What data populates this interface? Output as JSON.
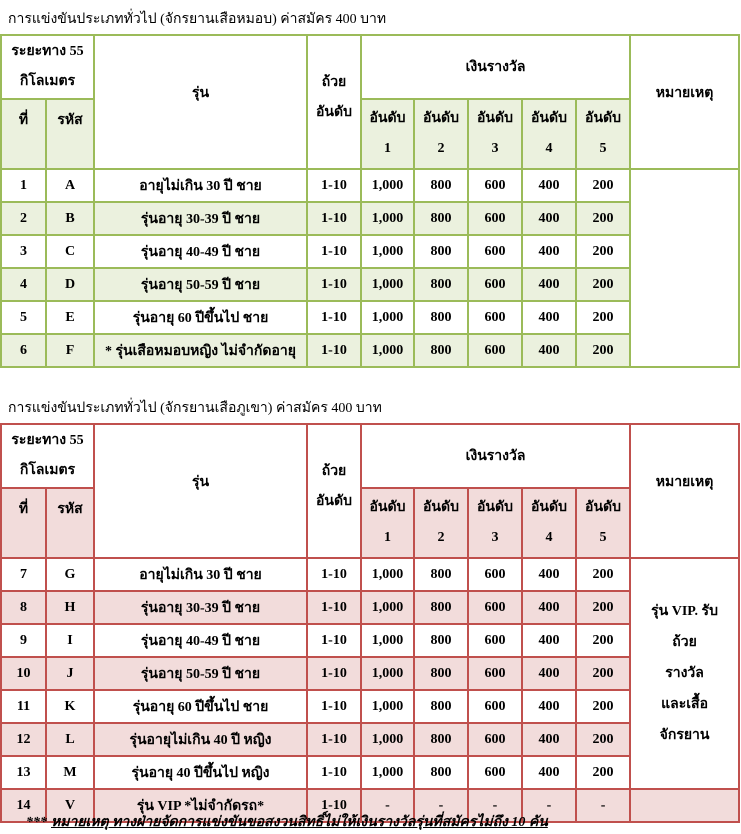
{
  "colors": {
    "green_border": "#9bbb59",
    "green_fill": "#ebf1de",
    "red_border": "#c0504d",
    "red_fill": "#f2dcdb"
  },
  "headers": {
    "distance_line1": "ระยะทาง 55",
    "distance_line2": "กิโลเมตร",
    "class": "รุ่น",
    "trophy_line1": "ถ้วย",
    "trophy_line2": "อันดับ",
    "prize": "เงินรางวัล",
    "remark": "หมายเหตุ",
    "no": "ที่",
    "code": "รหัส",
    "rank_label": "อันดับ",
    "ranks": [
      "1",
      "2",
      "3",
      "4",
      "5"
    ]
  },
  "table1": {
    "title": "การแข่งขันประเภททั่วไป (จักรยานเสือหมอบ) ค่าสมัคร 400 บาท",
    "rows": [
      {
        "no": "1",
        "code": "A",
        "class": "อายุไม่เกิน 30 ปี ชาย",
        "trophy": "1-10",
        "prizes": [
          "1,000",
          "800",
          "600",
          "400",
          "200"
        ]
      },
      {
        "no": "2",
        "code": "B",
        "class": "รุ่นอายุ 30-39 ปี ชาย",
        "trophy": "1-10",
        "prizes": [
          "1,000",
          "800",
          "600",
          "400",
          "200"
        ]
      },
      {
        "no": "3",
        "code": "C",
        "class": "รุ่นอายุ 40-49 ปี ชาย",
        "trophy": "1-10",
        "prizes": [
          "1,000",
          "800",
          "600",
          "400",
          "200"
        ]
      },
      {
        "no": "4",
        "code": "D",
        "class": "รุ่นอายุ 50-59 ปี ชาย",
        "trophy": "1-10",
        "prizes": [
          "1,000",
          "800",
          "600",
          "400",
          "200"
        ]
      },
      {
        "no": "5",
        "code": "E",
        "class": "รุ่นอายุ 60 ปีขึ้นไป ชาย",
        "trophy": "1-10",
        "prizes": [
          "1,000",
          "800",
          "600",
          "400",
          "200"
        ]
      },
      {
        "no": "6",
        "code": "F",
        "class": "* รุ่นเสือหมอบหญิง ไม่จำกัดอายุ",
        "trophy": "1-10",
        "prizes": [
          "1,000",
          "800",
          "600",
          "400",
          "200"
        ]
      }
    ]
  },
  "table2": {
    "title": "การแข่งขันประเภททั่วไป (จักรยานเสือภูเขา) ค่าสมัคร 400 บาท",
    "remark_lines": [
      "รุ่น VIP. รับ",
      "ถ้วย",
      "รางวัล",
      "และเสื้อ",
      "จักรยาน"
    ],
    "rows": [
      {
        "no": "7",
        "code": "G",
        "class": "อายุไม่เกิน 30 ปี ชาย",
        "trophy": "1-10",
        "prizes": [
          "1,000",
          "800",
          "600",
          "400",
          "200"
        ]
      },
      {
        "no": "8",
        "code": "H",
        "class": "รุ่นอายุ 30-39 ปี ชาย",
        "trophy": "1-10",
        "prizes": [
          "1,000",
          "800",
          "600",
          "400",
          "200"
        ]
      },
      {
        "no": "9",
        "code": "I",
        "class": "รุ่นอายุ 40-49 ปี ชาย",
        "trophy": "1-10",
        "prizes": [
          "1,000",
          "800",
          "600",
          "400",
          "200"
        ]
      },
      {
        "no": "10",
        "code": "J",
        "class": "รุ่นอายุ 50-59 ปี ชาย",
        "trophy": "1-10",
        "prizes": [
          "1,000",
          "800",
          "600",
          "400",
          "200"
        ]
      },
      {
        "no": "11",
        "code": "K",
        "class": "รุ่นอายุ 60 ปีขึ้นไป ชาย",
        "trophy": "1-10",
        "prizes": [
          "1,000",
          "800",
          "600",
          "400",
          "200"
        ]
      },
      {
        "no": "12",
        "code": "L",
        "class": "รุ่นอายุไม่เกิน 40 ปี หญิง",
        "trophy": "1-10",
        "prizes": [
          "1,000",
          "800",
          "600",
          "400",
          "200"
        ]
      },
      {
        "no": "13",
        "code": "M",
        "class": "รุ่นอายุ 40 ปีขึ้นไป หญิง",
        "trophy": "1-10",
        "prizes": [
          "1,000",
          "800",
          "600",
          "400",
          "200"
        ]
      },
      {
        "no": "14",
        "code": "V",
        "class": "รุ่น VIP  *ไม่จำกัดรถ*",
        "trophy": "1-10",
        "prizes": [
          "-",
          "-",
          "-",
          "-",
          "-"
        ]
      }
    ]
  },
  "footnote": {
    "stars": "***",
    "text": "หมายเหตุ  ทางฝ่ายจัดการแข่งขันขอสงวนสิทธิ์ไม่ให้เงินรางวัลรุ่นที่สมัครไม่ถึง 10 คัน"
  }
}
